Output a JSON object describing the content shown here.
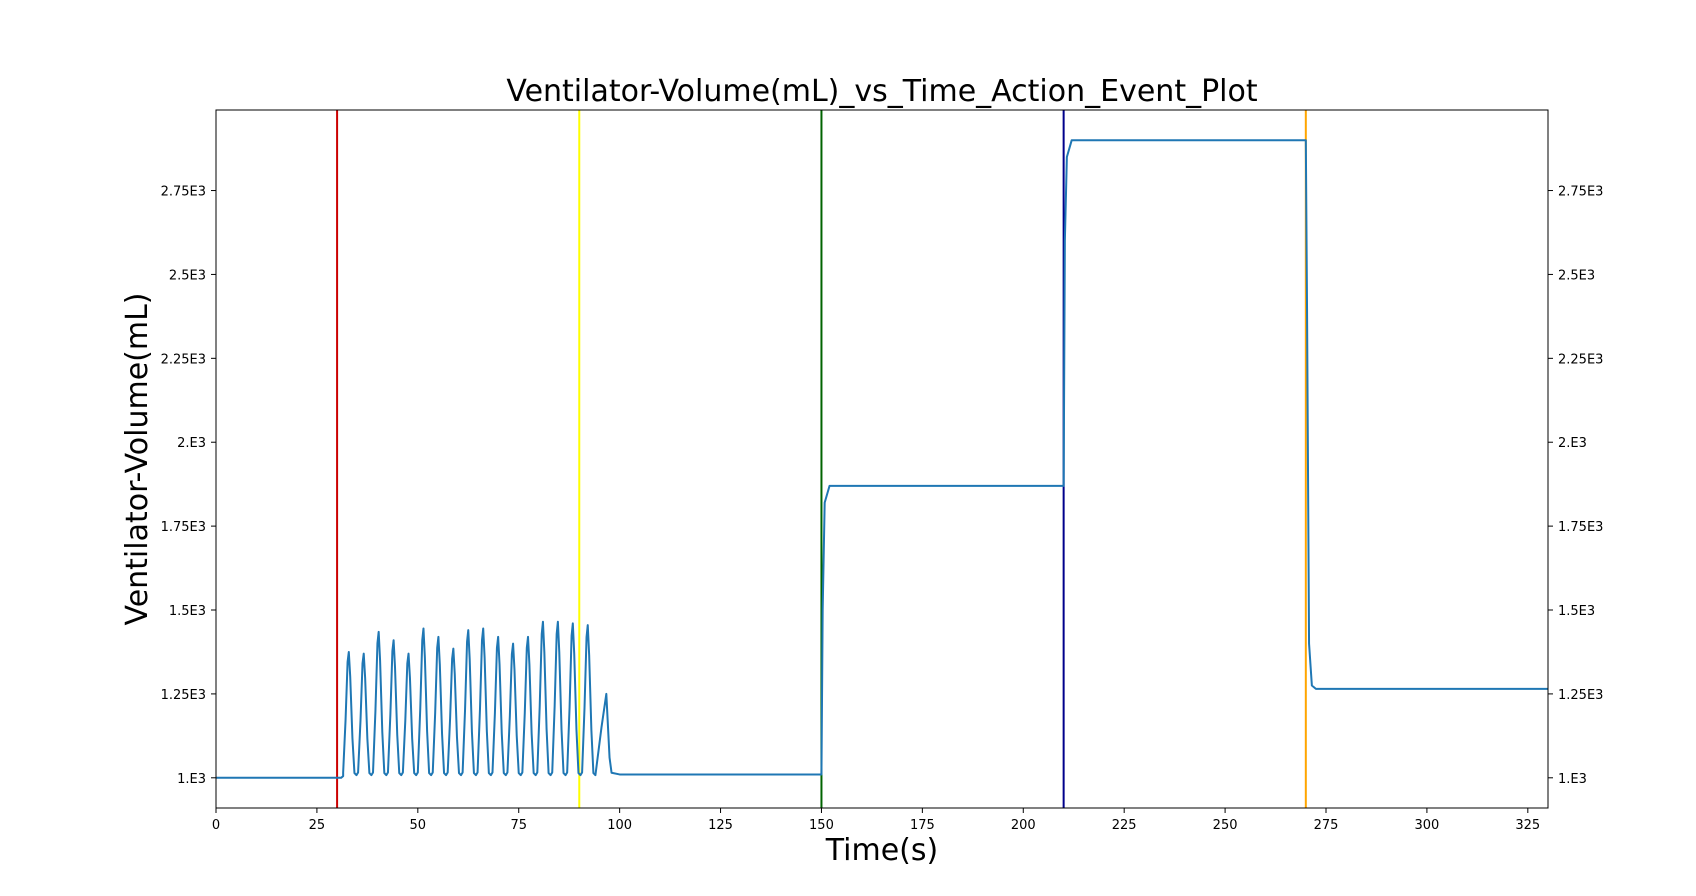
{
  "chart_data": {
    "type": "line",
    "title": "Ventilator-Volume(mL)_vs_Time_Action_Event_Plot",
    "xlabel": "Time(s)",
    "ylabel": "Ventilator-Volume(mL)",
    "xlim": [
      0,
      330
    ],
    "ylim": [
      910,
      2990
    ],
    "x_ticks": [
      0,
      25,
      50,
      75,
      100,
      125,
      150,
      175,
      200,
      225,
      250,
      275,
      300,
      325
    ],
    "x_tick_labels": [
      "0",
      "25",
      "50",
      "75",
      "100",
      "125",
      "150",
      "175",
      "200",
      "225",
      "250",
      "275",
      "300",
      "325"
    ],
    "y_ticks": [
      1000,
      1250,
      1500,
      1750,
      2000,
      2250,
      2500,
      2750
    ],
    "y_tick_labels": [
      "1.E3",
      "1.25E3",
      "1.5E3",
      "1.75E3",
      "2.E3",
      "2.25E3",
      "2.5E3",
      "2.75E3"
    ],
    "grid": false,
    "legend": "none",
    "event_lines": [
      {
        "x": 30,
        "color": "#cc0000"
      },
      {
        "x": 90,
        "color": "#ffff00"
      },
      {
        "x": 150,
        "color": "#006400"
      },
      {
        "x": 210,
        "color": "#00008b"
      },
      {
        "x": 270,
        "color": "#ffa500"
      }
    ],
    "series": [
      {
        "color": "#1f77b4",
        "breath_peaks": [
          [
            32.9,
            1375
          ],
          [
            36.6,
            1370
          ],
          [
            40.3,
            1435
          ],
          [
            44.0,
            1410
          ],
          [
            47.7,
            1370
          ],
          [
            51.4,
            1445
          ],
          [
            55.1,
            1420
          ],
          [
            58.8,
            1385
          ],
          [
            62.5,
            1440
          ],
          [
            66.2,
            1445
          ],
          [
            69.9,
            1420
          ],
          [
            73.6,
            1400
          ],
          [
            77.3,
            1420
          ],
          [
            81.0,
            1465
          ],
          [
            84.7,
            1465
          ],
          [
            88.4,
            1460
          ],
          [
            92.1,
            1455
          ]
        ],
        "points": [
          [
            0,
            1000
          ],
          [
            31,
            1000
          ],
          [
            31.5,
            1005
          ],
          [
            95.5,
            1150
          ],
          [
            96.7,
            1250
          ],
          [
            97.5,
            1060
          ],
          [
            98,
            1015
          ],
          [
            100,
            1010
          ],
          [
            150,
            1010
          ],
          [
            150.3,
            1500
          ],
          [
            150.8,
            1820
          ],
          [
            152,
            1870
          ],
          [
            210,
            1870
          ],
          [
            210.3,
            2600
          ],
          [
            210.8,
            2850
          ],
          [
            212,
            2900
          ],
          [
            270,
            2900
          ],
          [
            270.3,
            2400
          ],
          [
            270.8,
            1400
          ],
          [
            271.5,
            1275
          ],
          [
            272.5,
            1265
          ],
          [
            330,
            1265
          ]
        ]
      }
    ]
  }
}
